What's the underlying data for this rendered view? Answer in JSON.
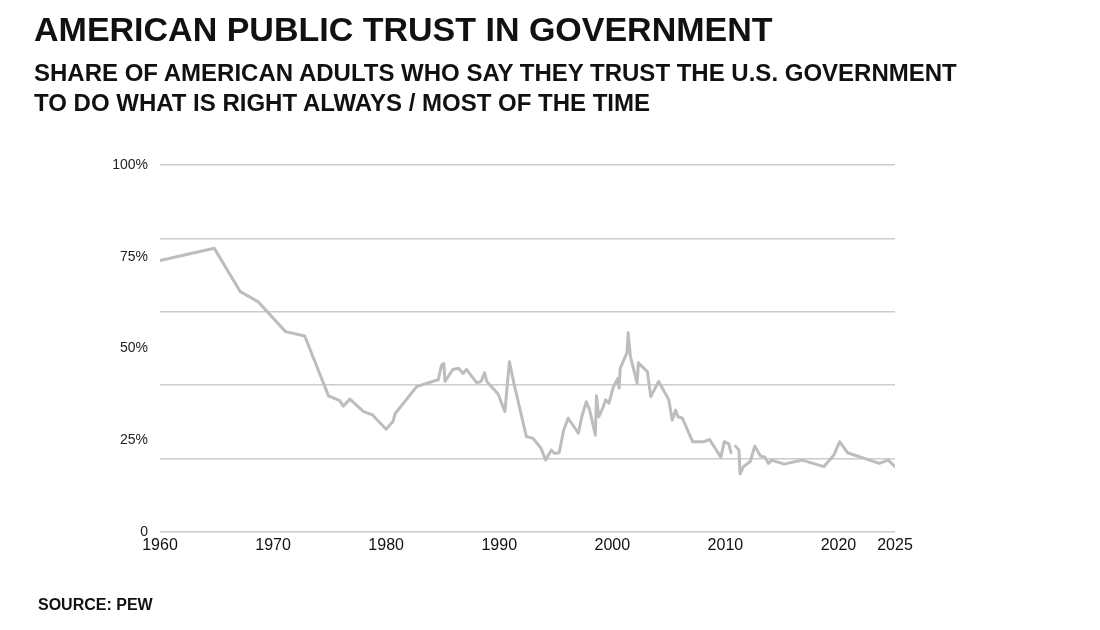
{
  "chart_data": {
    "type": "line",
    "title": "AMERICAN PUBLIC TRUST IN GOVERNMENT",
    "subtitle": "SHARE OF AMERICAN ADULTS WHO SAY THEY TRUST THE U.S. GOVERNMENT TO DO WHAT IS RIGHT ALWAYS / MOST OF THE TIME",
    "x": [
      1960,
      1964.8,
      1967.1,
      1968.7,
      1971.1,
      1972.8,
      1974.9,
      1975.9,
      1976.2,
      1976.8,
      1978,
      1978.8,
      1980,
      1980.6,
      1980.8,
      1982.7,
      1984.3,
      1984.6,
      1984.9,
      1985.1,
      1985.2,
      1985.9,
      1986.4,
      1986.8,
      1987.1,
      1988,
      1988.4,
      1988.7,
      1988.9,
      1989.9,
      1990.5,
      1990.9,
      1991.3,
      1992.4,
      1993,
      1993.7,
      1994.1,
      1994.6,
      1994.9,
      1995.3,
      1995.7,
      1996.1,
      1997,
      1997.3,
      1997.7,
      1998,
      1998.5,
      1998.6,
      1998.8,
      1999.2,
      1999.4,
      1999.7,
      2000.1,
      2000.5,
      2000.6,
      2000.7,
      2001.3,
      2001.4,
      2001.6,
      2002.2,
      2002.3,
      2003.1,
      2003.4,
      2004.1,
      2005,
      2005.3,
      2005.6,
      2005.8,
      2006.2,
      2007.1,
      2008.1,
      2008.6,
      2009.6,
      2009.9,
      2010.3,
      2010.5,
      2010.7,
      2010.9,
      2011.2,
      2011.3,
      2011.6,
      2012.2,
      2012.6,
      2013.1,
      2013.5,
      2013.8,
      2014.1,
      2015.2,
      2016.8,
      2018.7,
      2019.6,
      2020.1,
      2020.8,
      2023.6,
      2024.4,
      2025
    ],
    "series": [
      {
        "color": "#bdbdbd",
        "values": [
          74,
          77.3,
          65.5,
          62.7,
          54.6,
          53.4,
          37.1,
          35.8,
          34.3,
          36.2,
          32.8,
          31.9,
          28,
          30.1,
          32.3,
          39.6,
          41.2,
          41.4,
          45.5,
          45.9,
          41,
          44.3,
          44.6,
          43.2,
          44.3,
          40.7,
          41,
          43.4,
          41,
          37.6,
          32.8,
          46.4,
          40.5,
          26,
          25.5,
          22.8,
          19.6,
          22.3,
          21.4,
          21.6,
          27.8,
          31,
          26.9,
          31.4,
          35.5,
          33.2,
          26.4,
          37.1,
          31.4,
          34.1,
          36,
          35.1,
          39.6,
          41.9,
          39.2,
          44.6,
          48.9,
          54.3,
          47.8,
          40.5,
          46.1,
          43.7,
          36.9,
          41,
          36,
          30.5,
          33.2,
          31.4,
          31,
          24.6,
          24.6,
          25.2,
          20.4,
          24.6,
          24,
          21.6,
          null,
          23.4,
          22.3,
          15.8,
          17.8,
          19.2,
          23.4,
          20.7,
          20.4,
          18.7,
          19.6,
          18.5,
          19.6,
          17.8,
          21,
          24.6,
          21.6,
          18.7,
          19.6,
          17.8
        ]
      }
    ],
    "xlim": [
      1960,
      2025
    ],
    "xticks": [
      1960,
      1970,
      1980,
      1990,
      2000,
      2010,
      2020,
      2025
    ],
    "ylim": [
      0,
      100
    ],
    "yticks": [
      {
        "value": 0,
        "label": "0"
      },
      {
        "value": 20,
        "label": null
      },
      {
        "value": 25,
        "label": "25%"
      },
      {
        "value": 40,
        "label": null
      },
      {
        "value": 50,
        "label": "50%"
      },
      {
        "value": 60,
        "label": null
      },
      {
        "value": 75,
        "label": "75%"
      },
      {
        "value": 80,
        "label": null
      },
      {
        "value": 100,
        "label": "100%"
      }
    ],
    "grid": "y",
    "marker": "none",
    "legend": false,
    "annotations": [
      "SOURCE: PEW"
    ]
  }
}
